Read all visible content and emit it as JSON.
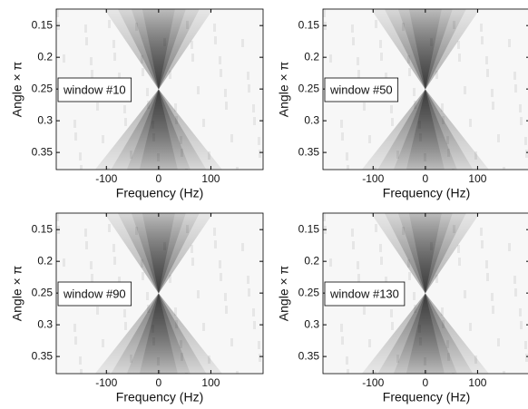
{
  "chart_data": [
    {
      "type": "heatmap",
      "xlabel": "Frequency (Hz)",
      "ylabel": "Angle × π",
      "annotation": "window #10",
      "xlim": [
        -196,
        200
      ],
      "ylim": [
        0.124,
        0.377
      ],
      "y_inverted": true,
      "xticks": [
        -100,
        0,
        100
      ],
      "yticks": [
        0.15,
        0.2,
        0.25,
        0.3,
        0.35
      ],
      "colormap": "gray"
    },
    {
      "type": "heatmap",
      "xlabel": "Frequency (Hz)",
      "ylabel": "Angle × π",
      "annotation": "window #50",
      "xlim": [
        -196,
        200
      ],
      "ylim": [
        0.124,
        0.377
      ],
      "y_inverted": true,
      "xticks": [
        -100,
        0,
        100
      ],
      "yticks": [
        0.15,
        0.2,
        0.25,
        0.3,
        0.35
      ],
      "colormap": "gray"
    },
    {
      "type": "heatmap",
      "xlabel": "Frequency (Hz)",
      "ylabel": "Angle × π",
      "annotation": "window #90",
      "xlim": [
        -196,
        200
      ],
      "ylim": [
        0.124,
        0.377
      ],
      "y_inverted": true,
      "xticks": [
        -100,
        0,
        100
      ],
      "yticks": [
        0.15,
        0.2,
        0.25,
        0.3,
        0.35
      ],
      "colormap": "gray"
    },
    {
      "type": "heatmap",
      "xlabel": "Frequency (Hz)",
      "ylabel": "Angle × π",
      "annotation": "window #130",
      "xlim": [
        -196,
        200
      ],
      "ylim": [
        0.124,
        0.377
      ],
      "y_inverted": true,
      "xticks": [
        -100,
        0,
        100
      ],
      "yticks": [
        0.15,
        0.2,
        0.25,
        0.3,
        0.35
      ],
      "colormap": "gray"
    }
  ]
}
